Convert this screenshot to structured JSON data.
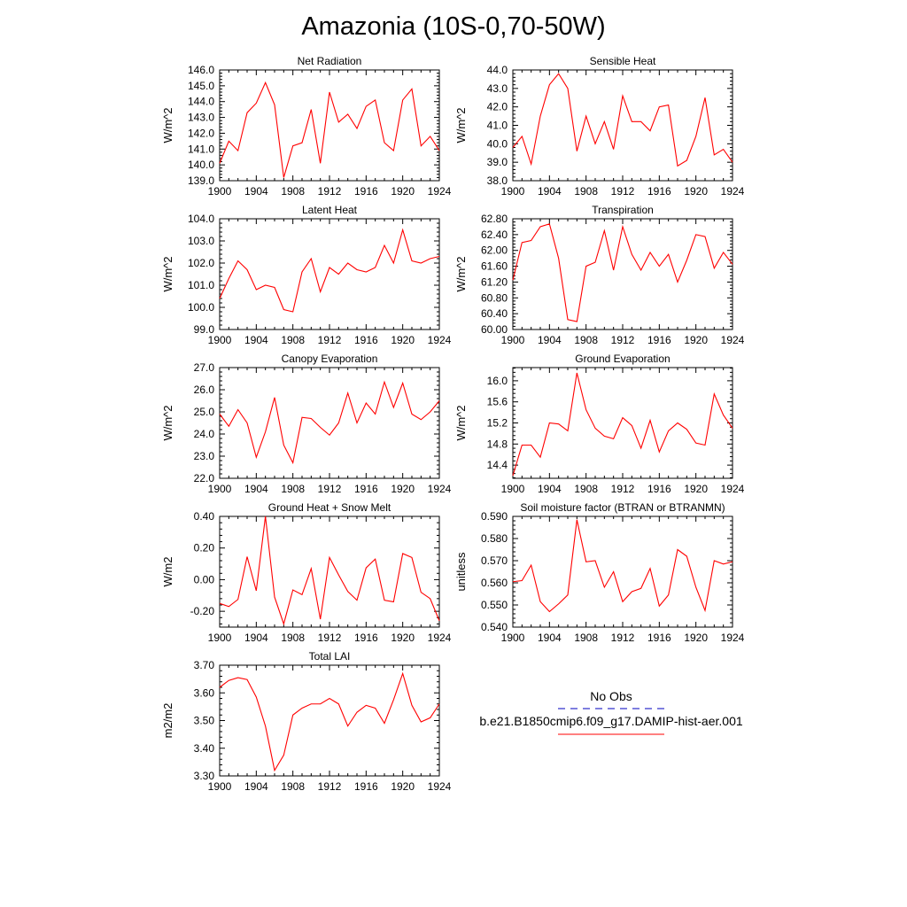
{
  "title": "Amazonia (10S-0,70-50W)",
  "legend": {
    "entries": [
      {
        "label": "No Obs",
        "color": "#3333cc",
        "style": "dashed"
      },
      {
        "label": "b.e21.B1850cmip6.f09_g17.DAMIP-hist-aer.001",
        "color": "#ff0000",
        "style": "solid"
      }
    ]
  },
  "chart_data": [
    {
      "type": "line",
      "title": "Net Radiation",
      "xlabel": "",
      "ylabel": "W/m^2",
      "xlim": [
        1900,
        1924
      ],
      "ylim": [
        139.0,
        146.0
      ],
      "xticks": [
        "1900",
        "1904",
        "1908",
        "1912",
        "1916",
        "1920",
        "1924"
      ],
      "yticks": [
        "139.0",
        "140.0",
        "141.0",
        "142.0",
        "143.0",
        "144.0",
        "145.0",
        "146.0"
      ],
      "series": [
        {
          "color": "#ff0000",
          "x": [
            1900,
            1901,
            1902,
            1903,
            1904,
            1905,
            1906,
            1907,
            1908,
            1909,
            1910,
            1911,
            1912,
            1913,
            1914,
            1915,
            1916,
            1917,
            1918,
            1919,
            1920,
            1921,
            1922,
            1923,
            1924
          ],
          "values": [
            140.1,
            141.5,
            140.9,
            143.3,
            143.9,
            145.2,
            143.8,
            139.2,
            141.2,
            141.4,
            143.5,
            140.1,
            144.6,
            142.7,
            143.2,
            142.3,
            143.7,
            144.1,
            141.4,
            140.9,
            144.1,
            144.8,
            141.2,
            141.8,
            140.9
          ]
        }
      ]
    },
    {
      "type": "line",
      "title": "Sensible Heat",
      "xlabel": "",
      "ylabel": "W/m^2",
      "xlim": [
        1900,
        1924
      ],
      "ylim": [
        38.0,
        44.0
      ],
      "xticks": [
        "1900",
        "1904",
        "1908",
        "1912",
        "1916",
        "1920",
        "1924"
      ],
      "yticks": [
        "38.0",
        "39.0",
        "40.0",
        "41.0",
        "42.0",
        "43.0",
        "44.0"
      ],
      "series": [
        {
          "color": "#ff0000",
          "x": [
            1900,
            1901,
            1902,
            1903,
            1904,
            1905,
            1906,
            1907,
            1908,
            1909,
            1910,
            1911,
            1912,
            1913,
            1914,
            1915,
            1916,
            1917,
            1918,
            1919,
            1920,
            1921,
            1922,
            1923,
            1924
          ],
          "values": [
            39.8,
            40.4,
            38.9,
            41.5,
            43.2,
            43.8,
            43.0,
            39.6,
            41.5,
            40.0,
            41.2,
            39.7,
            42.6,
            41.2,
            41.2,
            40.7,
            42.0,
            42.1,
            38.8,
            39.1,
            40.4,
            42.5,
            39.4,
            39.7,
            39.0
          ]
        }
      ]
    },
    {
      "type": "line",
      "title": "Latent Heat",
      "xlabel": "",
      "ylabel": "W/m^2",
      "xlim": [
        1900,
        1924
      ],
      "ylim": [
        99.0,
        104.0
      ],
      "xticks": [
        "1900",
        "1904",
        "1908",
        "1912",
        "1916",
        "1920",
        "1924"
      ],
      "yticks": [
        "99.0",
        "100.0",
        "101.0",
        "102.0",
        "103.0",
        "104.0"
      ],
      "series": [
        {
          "color": "#ff0000",
          "x": [
            1900,
            1901,
            1902,
            1903,
            1904,
            1905,
            1906,
            1907,
            1908,
            1909,
            1910,
            1911,
            1912,
            1913,
            1914,
            1915,
            1916,
            1917,
            1918,
            1919,
            1920,
            1921,
            1922,
            1923,
            1924
          ],
          "values": [
            100.4,
            101.3,
            102.1,
            101.7,
            100.8,
            101.0,
            100.9,
            99.9,
            99.8,
            101.6,
            102.2,
            100.7,
            101.8,
            101.5,
            102.0,
            101.7,
            101.6,
            101.8,
            102.8,
            102.0,
            103.5,
            102.1,
            102.0,
            102.2,
            102.3
          ]
        }
      ]
    },
    {
      "type": "line",
      "title": "Transpiration",
      "xlabel": "",
      "ylabel": "W/m^2",
      "xlim": [
        1900,
        1924
      ],
      "ylim": [
        60.0,
        62.8
      ],
      "xticks": [
        "1900",
        "1904",
        "1908",
        "1912",
        "1916",
        "1920",
        "1924"
      ],
      "yticks": [
        "60.00",
        "60.40",
        "60.80",
        "61.20",
        "61.60",
        "62.00",
        "62.40",
        "62.80"
      ],
      "series": [
        {
          "color": "#ff0000",
          "x": [
            1900,
            1901,
            1902,
            1903,
            1904,
            1905,
            1906,
            1907,
            1908,
            1909,
            1910,
            1911,
            1912,
            1913,
            1914,
            1915,
            1916,
            1917,
            1918,
            1919,
            1920,
            1921,
            1922,
            1923,
            1924
          ],
          "values": [
            61.25,
            62.2,
            62.25,
            62.6,
            62.67,
            61.8,
            60.25,
            60.2,
            61.6,
            61.7,
            62.5,
            61.5,
            62.6,
            61.9,
            61.5,
            61.95,
            61.6,
            61.9,
            61.2,
            61.75,
            62.4,
            62.35,
            61.55,
            61.95,
            61.65
          ]
        }
      ]
    },
    {
      "type": "line",
      "title": "Canopy Evaporation",
      "xlabel": "",
      "ylabel": "W/m^2",
      "xlim": [
        1900,
        1924
      ],
      "ylim": [
        22.0,
        27.0
      ],
      "xticks": [
        "1900",
        "1904",
        "1908",
        "1912",
        "1916",
        "1920",
        "1924"
      ],
      "yticks": [
        "22.0",
        "23.0",
        "24.0",
        "25.0",
        "26.0",
        "27.0"
      ],
      "series": [
        {
          "color": "#ff0000",
          "x": [
            1900,
            1901,
            1902,
            1903,
            1904,
            1905,
            1906,
            1907,
            1908,
            1909,
            1910,
            1911,
            1912,
            1913,
            1914,
            1915,
            1916,
            1917,
            1918,
            1919,
            1920,
            1921,
            1922,
            1923,
            1924
          ],
          "values": [
            24.9,
            24.35,
            25.1,
            24.5,
            22.95,
            24.1,
            25.65,
            23.5,
            22.7,
            24.75,
            24.7,
            24.3,
            23.95,
            24.5,
            25.85,
            24.5,
            25.4,
            24.9,
            26.35,
            25.2,
            26.3,
            24.9,
            24.65,
            25.0,
            25.5
          ]
        }
      ]
    },
    {
      "type": "line",
      "title": "Ground Evaporation",
      "xlabel": "",
      "ylabel": "W/m^2",
      "xlim": [
        1900,
        1924
      ],
      "ylim": [
        14.15,
        16.25
      ],
      "xticks": [
        "1900",
        "1904",
        "1908",
        "1912",
        "1916",
        "1920",
        "1924"
      ],
      "yticks": [
        "14.4",
        "14.8",
        "15.2",
        "15.6",
        "16.0"
      ],
      "ytick_values": [
        14.4,
        14.8,
        15.2,
        15.6,
        16.0
      ],
      "series": [
        {
          "color": "#ff0000",
          "x": [
            1900,
            1901,
            1902,
            1903,
            1904,
            1905,
            1906,
            1907,
            1908,
            1909,
            1910,
            1911,
            1912,
            1913,
            1914,
            1915,
            1916,
            1917,
            1918,
            1919,
            1920,
            1921,
            1922,
            1923,
            1924
          ],
          "values": [
            14.2,
            14.78,
            14.78,
            14.55,
            15.2,
            15.18,
            15.05,
            16.15,
            15.45,
            15.1,
            14.95,
            14.9,
            15.3,
            15.15,
            14.72,
            15.25,
            14.65,
            15.05,
            15.2,
            15.08,
            14.82,
            14.78,
            15.75,
            15.35,
            15.1
          ]
        }
      ]
    },
    {
      "type": "line",
      "title": "Ground Heat + Snow Melt",
      "xlabel": "",
      "ylabel": "W/m2",
      "xlim": [
        1900,
        1924
      ],
      "ylim": [
        -0.3,
        0.4
      ],
      "xticks": [
        "1900",
        "1904",
        "1908",
        "1912",
        "1916",
        "1920",
        "1924"
      ],
      "yticks": [
        "-0.20",
        "0.00",
        "0.20",
        "0.40"
      ],
      "ytick_values": [
        -0.2,
        0.0,
        0.2,
        0.4
      ],
      "series": [
        {
          "color": "#ff0000",
          "x": [
            1900,
            1901,
            1902,
            1903,
            1904,
            1905,
            1906,
            1907,
            1908,
            1909,
            1910,
            1911,
            1912,
            1913,
            1914,
            1915,
            1916,
            1917,
            1918,
            1919,
            1920,
            1921,
            1922,
            1923,
            1924
          ],
          "values": [
            -0.15,
            -0.17,
            -0.125,
            0.145,
            -0.07,
            0.4,
            -0.11,
            -0.28,
            -0.065,
            -0.095,
            0.07,
            -0.25,
            0.14,
            0.03,
            -0.075,
            -0.13,
            0.075,
            0.13,
            -0.13,
            -0.14,
            0.165,
            0.14,
            -0.08,
            -0.12,
            -0.26
          ]
        }
      ]
    },
    {
      "type": "line",
      "title": "Soil moisture factor (BTRAN or BTRANMN)",
      "xlabel": "",
      "ylabel": "unitless",
      "xlim": [
        1900,
        1924
      ],
      "ylim": [
        0.54,
        0.59
      ],
      "xticks": [
        "1900",
        "1904",
        "1908",
        "1912",
        "1916",
        "1920",
        "1924"
      ],
      "yticks": [
        "0.540",
        "0.550",
        "0.560",
        "0.570",
        "0.580",
        "0.590"
      ],
      "series": [
        {
          "color": "#ff0000",
          "x": [
            1900,
            1901,
            1902,
            1903,
            1904,
            1905,
            1906,
            1907,
            1908,
            1909,
            1910,
            1911,
            1912,
            1913,
            1914,
            1915,
            1916,
            1917,
            1918,
            1919,
            1920,
            1921,
            1922,
            1923,
            1924
          ],
          "values": [
            0.5605,
            0.561,
            0.568,
            0.5515,
            0.547,
            0.5505,
            0.5545,
            0.5885,
            0.5695,
            0.57,
            0.558,
            0.565,
            0.5515,
            0.556,
            0.5575,
            0.5665,
            0.5495,
            0.5545,
            0.575,
            0.572,
            0.558,
            0.5475,
            0.57,
            0.5685,
            0.5695
          ]
        }
      ]
    },
    {
      "type": "line",
      "title": "Total LAI",
      "xlabel": "",
      "ylabel": "m2/m2",
      "xlim": [
        1900,
        1924
      ],
      "ylim": [
        3.3,
        3.7
      ],
      "xticks": [
        "1900",
        "1904",
        "1908",
        "1912",
        "1916",
        "1920",
        "1924"
      ],
      "yticks": [
        "3.30",
        "3.40",
        "3.50",
        "3.60",
        "3.70"
      ],
      "series": [
        {
          "color": "#ff0000",
          "x": [
            1900,
            1901,
            1902,
            1903,
            1904,
            1905,
            1906,
            1907,
            1908,
            1909,
            1910,
            1911,
            1912,
            1913,
            1914,
            1915,
            1916,
            1917,
            1918,
            1919,
            1920,
            1921,
            1922,
            1923,
            1924
          ],
          "values": [
            3.62,
            3.645,
            3.655,
            3.648,
            3.585,
            3.48,
            3.32,
            3.375,
            3.52,
            3.545,
            3.56,
            3.56,
            3.58,
            3.56,
            3.48,
            3.53,
            3.555,
            3.545,
            3.49,
            3.575,
            3.67,
            3.555,
            3.495,
            3.51,
            3.56
          ]
        }
      ]
    }
  ]
}
